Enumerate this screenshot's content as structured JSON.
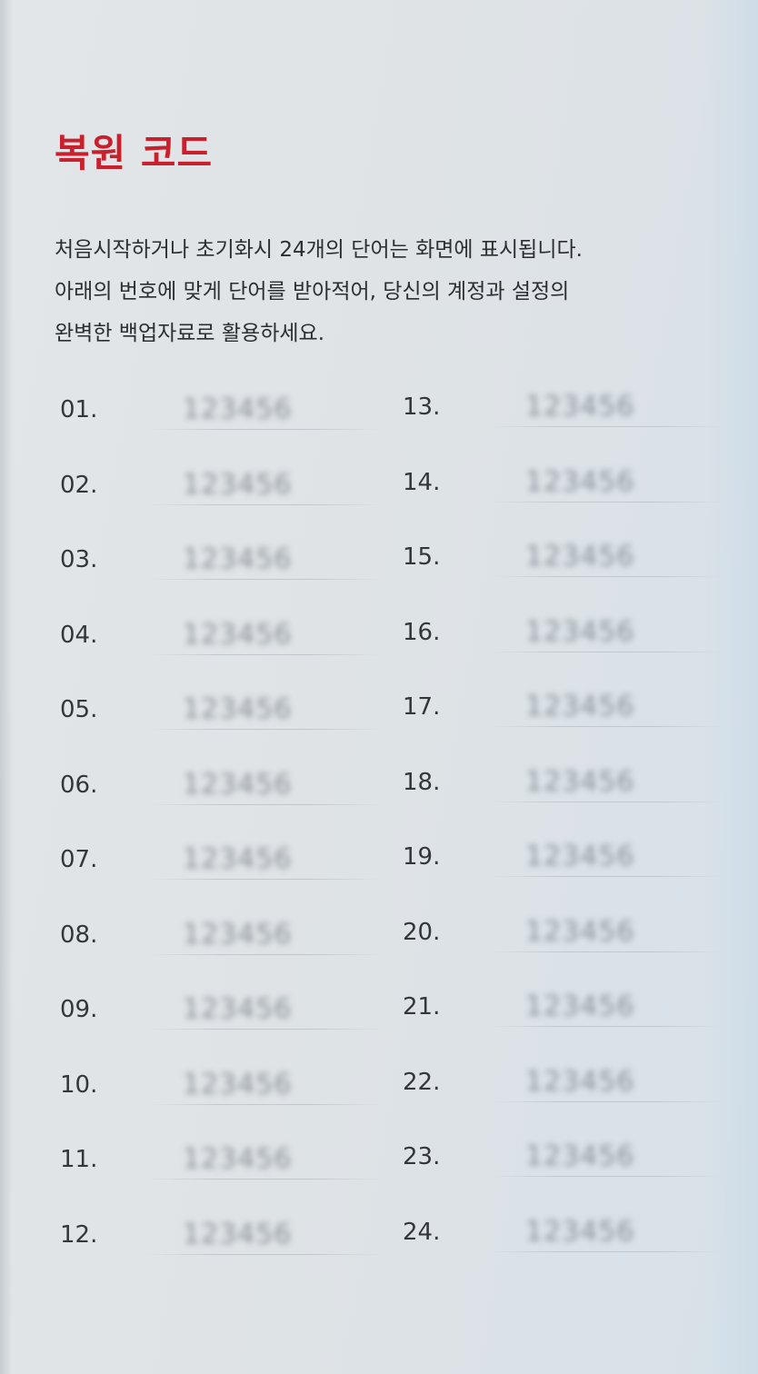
{
  "card": {
    "title": "복원 코드",
    "description": [
      "처음시작하거나 초기화시 24개의 단어는 화면에 표시됩니다.",
      "아래의 번호에 맞게 단어를 받아적어, 당신의 계정과 설정의",
      "완벽한 백업자료로 활용하세요."
    ],
    "words_left": [
      {
        "number": "01.",
        "word": "123456"
      },
      {
        "number": "02.",
        "word": "123456"
      },
      {
        "number": "03.",
        "word": "123456"
      },
      {
        "number": "04.",
        "word": "123456"
      },
      {
        "number": "05.",
        "word": "123456"
      },
      {
        "number": "06.",
        "word": "123456"
      },
      {
        "number": "07.",
        "word": "123456"
      },
      {
        "number": "08.",
        "word": "123456"
      },
      {
        "number": "09.",
        "word": "123456"
      },
      {
        "number": "10.",
        "word": "123456"
      },
      {
        "number": "11.",
        "word": "123456"
      },
      {
        "number": "12.",
        "word": "123456"
      }
    ],
    "words_right": [
      {
        "number": "13.",
        "word": "123456"
      },
      {
        "number": "14.",
        "word": "123456"
      },
      {
        "number": "15.",
        "word": "123456"
      },
      {
        "number": "16.",
        "word": "123456"
      },
      {
        "number": "17.",
        "word": "123456"
      },
      {
        "number": "18.",
        "word": "123456"
      },
      {
        "number": "19.",
        "word": "123456"
      },
      {
        "number": "20.",
        "word": "123456"
      },
      {
        "number": "21.",
        "word": "123456"
      },
      {
        "number": "22.",
        "word": "123456"
      },
      {
        "number": "23.",
        "word": "123456"
      },
      {
        "number": "24.",
        "word": "123456"
      }
    ]
  },
  "colors": {
    "title": "#c8202c",
    "text": "#2c2e30",
    "card_background": "#e1e4e6"
  }
}
